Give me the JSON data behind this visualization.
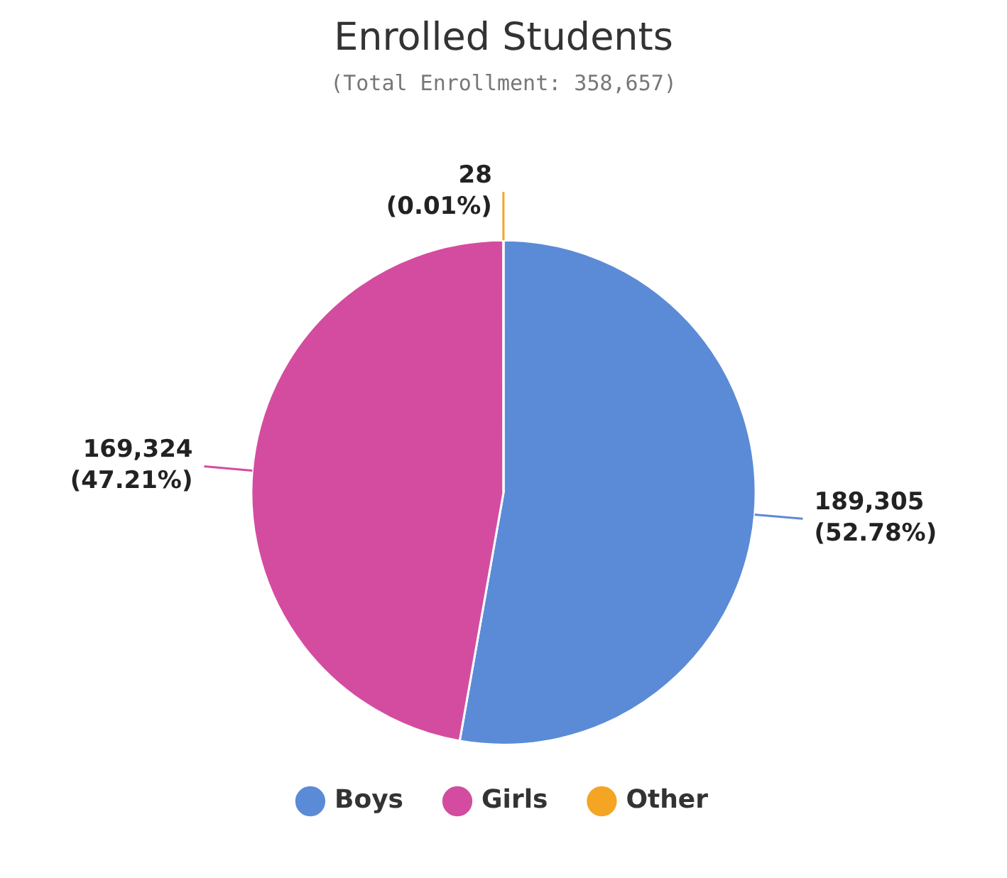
{
  "chart_data": {
    "type": "pie",
    "title": "Enrolled Students",
    "subtitle": "(Total Enrollment: 358,657)",
    "categories": [
      "Boys",
      "Girls",
      "Other"
    ],
    "values": [
      189305,
      169324,
      28
    ],
    "colors": [
      "#5b8bd6",
      "#d44c9f",
      "#f5a524"
    ],
    "value_labels": [
      "189,305\n(52.78%)",
      "169,324\n(47.21%)",
      "28\n(0.01%)"
    ],
    "legend": "bottom"
  }
}
